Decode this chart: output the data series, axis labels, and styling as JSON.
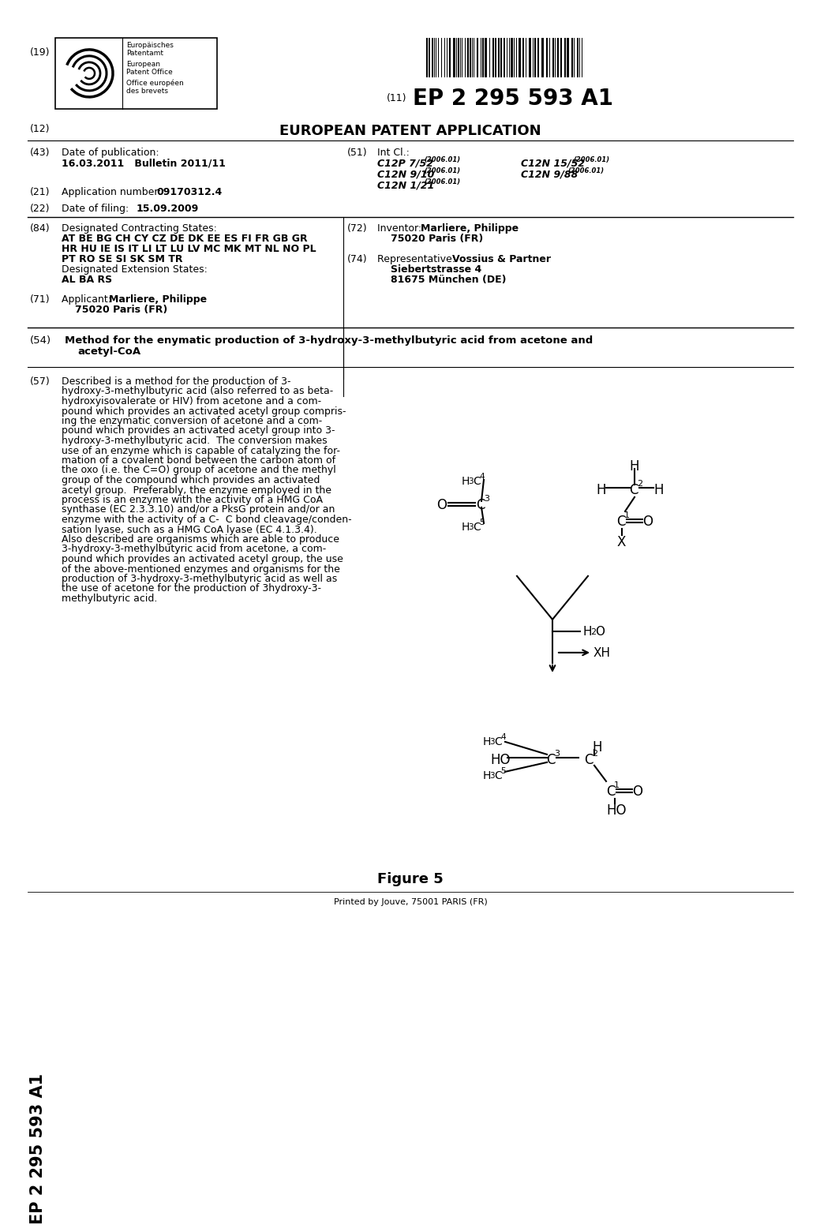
{
  "bg_color": "#ffffff",
  "field_19": "(19)",
  "epo_texts": [
    "Europäisches\nPatentamt",
    "European\nPatent Office",
    "Office européen\ndes brevets"
  ],
  "field_11_label": "(11)",
  "field_11_val": "EP 2 295 593 A1",
  "field_12_label": "(12)",
  "field_12_val": "EUROPEAN PATENT APPLICATION",
  "field_43_label": "(43)",
  "field_43_title": "Date of publication:",
  "field_43_val": "16.03.2011   Bulletin 2011/11",
  "field_51_label": "(51)",
  "field_51_title": "Int Cl.:",
  "field_51_c1": "C12P 7/52",
  "field_51_c2": "C12N 9/10",
  "field_51_c3": "C12N 1/21",
  "field_51_c4": "C12N 15/52",
  "field_51_c5": "C12N 9/88",
  "field_51_year": "(2006.01)",
  "field_21_label": "(21)",
  "field_21_val": "Application number: 09170312.4",
  "field_22_label": "(22)",
  "field_22_val": "Date of filing: 15.09.2009",
  "field_84_label": "(84)",
  "field_84_title": "Designated Contracting States:",
  "field_84_states1": "AT BE BG CH CY CZ DE DK EE ES FI FR GB GR",
  "field_84_states2": "HR HU IE IS IT LI LT LU LV MC MK MT NL NO PL",
  "field_84_states3": "PT RO SE SI SK SM TR",
  "field_84_ext_title": "Designated Extension States:",
  "field_84_ext": "AL BA RS",
  "field_72_label": "(72)",
  "field_72_title": "Inventor: ",
  "field_72_val": "Marliere, Philippe",
  "field_72_addr": "75020 Paris (FR)",
  "field_74_label": "(74)",
  "field_74_title": "Representative: ",
  "field_74_val": "Vossius & Partner",
  "field_74_addr1": "Siebertstrasse 4",
  "field_74_addr2": "81675 München (DE)",
  "field_71_label": "(71)",
  "field_71_title": "Applicant: ",
  "field_71_val": "Marliere, Philippe",
  "field_71_addr": "75020 Paris (FR)",
  "field_54_label": "(54)",
  "field_54_line1": "Method for the enymatic production of 3-hydroxy-3-methylbutyric acid from acetone and",
  "field_54_line2": "acetyl-CoA",
  "field_57_label": "(57)",
  "abstract_lines": [
    "Described is a method for the production of 3-",
    "hydroxy-3-methylbutyric acid (also referred to as beta-",
    "hydroxyisovalerate or HIV) from acetone and a com-",
    "pound which provides an activated acetyl group compris-",
    "ing the enzymatic conversion of acetone and a com-",
    "pound which provides an activated acetyl group into 3-",
    "hydroxy-3-methylbutyric acid.  The conversion makes",
    "use of an enzyme which is capable of catalyzing the for-",
    "mation of a covalent bond between the carbon atom of",
    "the oxo (i.e. the C=O) group of acetone and the methyl",
    "group of the compound which provides an activated",
    "acetyl group.  Preferably, the enzyme employed in the",
    "process is an enzyme with the activity of a HMG CoA",
    "synthase (EC 2.3.3.10) and/or a PksG protein and/or an",
    "enzyme with the activity of a C-  C bond cleavage/conden-",
    "sation lyase, such as a HMG CoA lyase (EC 4.1.3.4).",
    "Also described are organisms which are able to produce",
    "3-hydroxy-3-methylbutyric acid from acetone, a com-",
    "pound which provides an activated acetyl group, the use",
    "of the above-mentioned enzymes and organisms for the",
    "production of 3-hydroxy-3-methylbutyric acid as well as",
    "the use of acetone for the production of 3⁠hydroxy-3-",
    "methylbutyric acid."
  ],
  "figure_caption": "Figure 5",
  "footer": "Printed by Jouve, 75001 PARIS (FR)",
  "sidebar": "EP 2 295 593 A1"
}
